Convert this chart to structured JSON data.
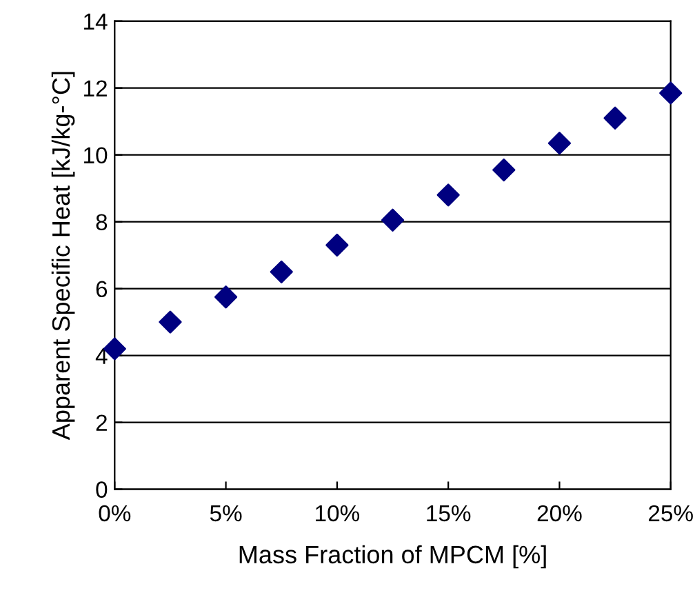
{
  "chart_data": {
    "type": "scatter",
    "xlabel": "Mass Fraction of MPCM [%]",
    "ylabel": "Apparent Specific Heat [kJ/kg-°C]",
    "x": [
      0,
      2.5,
      5,
      7.5,
      10,
      12.5,
      15,
      17.5,
      20,
      22.5,
      25
    ],
    "series": [
      {
        "color": "#000080",
        "values": [
          4.2,
          5.0,
          5.75,
          6.5,
          7.3,
          8.05,
          8.8,
          9.55,
          10.35,
          11.1,
          11.85
        ]
      }
    ],
    "xlim": [
      0,
      25
    ],
    "xticks": [
      {
        "value": 0,
        "label": "0%"
      },
      {
        "value": 5,
        "label": "5%"
      },
      {
        "value": 10,
        "label": "10%"
      },
      {
        "value": 15,
        "label": "15%"
      },
      {
        "value": 20,
        "label": "20%"
      },
      {
        "value": 25,
        "label": "25%"
      }
    ],
    "ylim": [
      0,
      14
    ],
    "yticks": [
      0,
      2,
      4,
      6,
      8,
      10,
      12,
      14
    ],
    "grid": "y",
    "marker": "diamond",
    "legend": false
  }
}
